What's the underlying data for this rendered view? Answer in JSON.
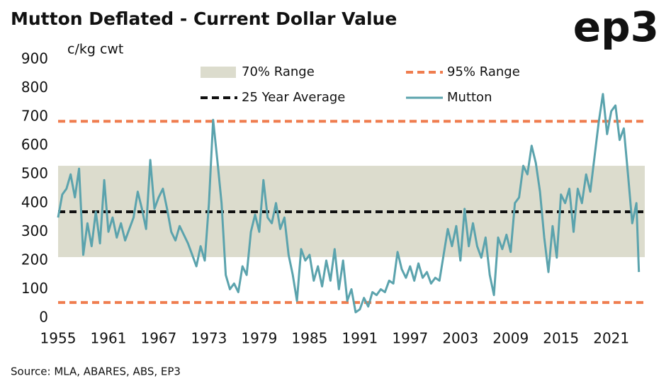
{
  "chart_data": {
    "type": "line",
    "title": "Mutton Deflated - Current Dollar Value",
    "logo": "ep3",
    "y_label": "c/kg cwt",
    "source": "Source: MLA, ABARES, ABS, EP3",
    "xlim": [
      1955,
      2025
    ],
    "xticks": [
      1955,
      1961,
      1967,
      1973,
      1979,
      1985,
      1991,
      1997,
      2003,
      2009,
      2015,
      2021
    ],
    "ylim": [
      0,
      900
    ],
    "yticks": [
      0,
      100,
      200,
      300,
      400,
      500,
      600,
      700,
      800,
      900
    ],
    "bands": [
      {
        "name": "70% Range",
        "color": "#dcdccd",
        "range": [
          212,
          530
        ]
      }
    ],
    "hlines": [
      {
        "name": "95% Range",
        "color": "#ef7d4f",
        "values": [
          54,
          685
        ]
      },
      {
        "name": "25 Year Average",
        "color": "#111111",
        "values": [
          370
        ]
      }
    ],
    "x": [
      1955,
      1955.5,
      1956,
      1956.5,
      1957,
      1957.5,
      1958,
      1958.5,
      1959,
      1959.5,
      1960,
      1960.5,
      1961,
      1961.5,
      1962,
      1962.5,
      1963,
      1963.5,
      1964,
      1964.5,
      1965,
      1965.5,
      1966,
      1966.5,
      1967,
      1967.5,
      1968,
      1968.5,
      1969,
      1969.5,
      1970,
      1970.5,
      1971,
      1971.5,
      1972,
      1972.5,
      1973,
      1973.5,
      1974,
      1974.5,
      1975,
      1975.5,
      1976,
      1976.5,
      1977,
      1977.5,
      1978,
      1978.5,
      1979,
      1979.5,
      1980,
      1980.5,
      1981,
      1981.5,
      1982,
      1982.5,
      1983,
      1983.5,
      1984,
      1984.5,
      1985,
      1985.5,
      1986,
      1986.5,
      1987,
      1987.5,
      1988,
      1988.5,
      1989,
      1989.5,
      1990,
      1990.5,
      1991,
      1991.5,
      1992,
      1992.5,
      1993,
      1993.5,
      1994,
      1994.5,
      1995,
      1995.5,
      1996,
      1996.5,
      1997,
      1997.5,
      1998,
      1998.5,
      1999,
      1999.5,
      2000,
      2000.5,
      2001,
      2001.5,
      2002,
      2002.5,
      2003,
      2003.5,
      2004,
      2004.5,
      2005,
      2005.5,
      2006,
      2006.5,
      2007,
      2007.5,
      2008,
      2008.5,
      2009,
      2009.5,
      2010,
      2010.5,
      2011,
      2011.5,
      2012,
      2012.5,
      2013,
      2013.5,
      2014,
      2014.5,
      2015,
      2015.5,
      2016,
      2016.5,
      2017,
      2017.5,
      2018,
      2018.5,
      2019,
      2019.5,
      2020,
      2020.5,
      2021,
      2021.5,
      2022,
      2022.5,
      2023,
      2023.5,
      2024,
      2024.3
    ],
    "series": [
      {
        "name": "Mutton",
        "color": "#5ba3ad",
        "values": [
          350,
          430,
          450,
          500,
          420,
          520,
          220,
          330,
          250,
          370,
          260,
          480,
          300,
          350,
          280,
          330,
          270,
          310,
          350,
          440,
          380,
          310,
          550,
          380,
          420,
          450,
          380,
          300,
          270,
          320,
          290,
          260,
          220,
          180,
          250,
          200,
          400,
          690,
          550,
          400,
          150,
          100,
          120,
          90,
          180,
          150,
          300,
          360,
          300,
          480,
          350,
          330,
          400,
          310,
          350,
          220,
          150,
          60,
          240,
          200,
          220,
          130,
          180,
          110,
          200,
          130,
          240,
          100,
          200,
          60,
          100,
          20,
          30,
          70,
          40,
          90,
          80,
          100,
          90,
          130,
          120,
          230,
          170,
          140,
          180,
          130,
          190,
          140,
          160,
          120,
          140,
          130,
          220,
          310,
          250,
          320,
          200,
          380,
          250,
          330,
          250,
          210,
          280,
          150,
          80,
          280,
          240,
          290,
          230,
          400,
          420,
          530,
          500,
          600,
          540,
          440,
          280,
          160,
          320,
          210,
          430,
          400,
          450,
          300,
          450,
          400,
          500,
          440,
          560,
          680,
          780,
          640,
          720,
          740,
          620,
          660,
          500,
          330,
          400,
          160
        ]
      }
    ]
  }
}
